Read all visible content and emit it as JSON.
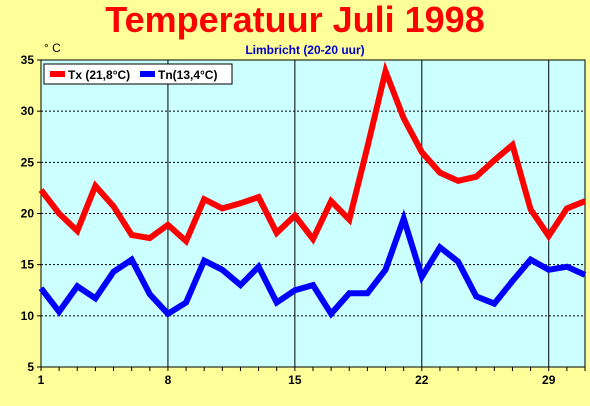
{
  "chart_data": {
    "type": "line",
    "title": "Temperatuur Juli 1998",
    "subtitle": "Limbricht (20-20 uur)",
    "ylabel": "° C",
    "xlim": [
      1,
      31
    ],
    "ylim": [
      5,
      35
    ],
    "x_ticks": [
      1,
      8,
      15,
      22,
      29
    ],
    "y_ticks": [
      5,
      10,
      15,
      20,
      25,
      30,
      35
    ],
    "grid": true,
    "legend_position": "top-left",
    "x": [
      1,
      2,
      3,
      4,
      5,
      6,
      7,
      8,
      9,
      10,
      11,
      12,
      13,
      14,
      15,
      16,
      17,
      18,
      19,
      20,
      21,
      22,
      23,
      24,
      25,
      26,
      27,
      28,
      29,
      30,
      31
    ],
    "series": [
      {
        "name": "Tx (21,8°C)",
        "color": "#ff0000",
        "values": [
          22.3,
          20.0,
          18.3,
          22.7,
          20.7,
          17.9,
          17.6,
          18.9,
          17.3,
          21.4,
          20.5,
          21.0,
          21.6,
          18.1,
          19.8,
          17.5,
          21.2,
          19.4,
          26.5,
          33.9,
          29.3,
          26.0,
          24.0,
          23.2,
          23.6,
          25.2,
          26.7,
          20.4,
          17.8,
          20.5,
          21.2
        ]
      },
      {
        "name": "Tn(13,4°C)",
        "color": "#0000ff",
        "values": [
          12.7,
          10.4,
          12.9,
          11.7,
          14.3,
          15.5,
          12.1,
          10.2,
          11.3,
          15.4,
          14.5,
          13.0,
          14.8,
          11.3,
          12.5,
          13.0,
          10.2,
          12.2,
          12.2,
          14.5,
          19.5,
          13.8,
          16.7,
          15.3,
          11.9,
          11.2,
          13.4,
          15.5,
          14.5,
          14.8,
          14.0
        ]
      }
    ]
  }
}
